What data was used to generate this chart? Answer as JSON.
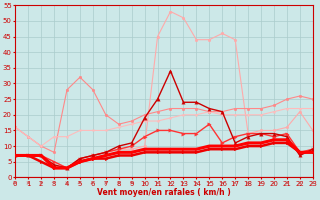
{
  "xlabel": "Vent moyen/en rafales ( km/h )",
  "background_color": "#cce8e8",
  "grid_color": "#aacccc",
  "xlim": [
    0,
    23
  ],
  "ylim": [
    0,
    55
  ],
  "yticks": [
    0,
    5,
    10,
    15,
    20,
    25,
    30,
    35,
    40,
    45,
    50,
    55
  ],
  "xticks": [
    0,
    1,
    2,
    3,
    4,
    5,
    6,
    7,
    8,
    9,
    10,
    11,
    12,
    13,
    14,
    15,
    16,
    17,
    18,
    19,
    20,
    21,
    22,
    23
  ],
  "series": [
    {
      "x": [
        0,
        1,
        2,
        3,
        4,
        5,
        6,
        7,
        8,
        9,
        10,
        11,
        12,
        13,
        14,
        15,
        16,
        17,
        18,
        19,
        20,
        21,
        22,
        23
      ],
      "y": [
        7,
        7,
        7,
        5,
        3,
        6,
        7,
        8,
        9,
        9,
        10,
        45,
        53,
        51,
        44,
        44,
        46,
        44,
        14,
        15,
        15,
        16,
        21,
        15
      ],
      "color": "#ffaaaa",
      "lw": 0.8,
      "marker": "o",
      "ms": 2.0,
      "zorder": 2
    },
    {
      "x": [
        0,
        1,
        2,
        3,
        4,
        5,
        6,
        7,
        8,
        9,
        10,
        11,
        12,
        13,
        14,
        15,
        16,
        17,
        18,
        19,
        20,
        21,
        22,
        23
      ],
      "y": [
        16,
        13,
        10,
        8,
        28,
        32,
        28,
        20,
        17,
        18,
        20,
        21,
        22,
        22,
        22,
        21,
        21,
        22,
        22,
        22,
        23,
        25,
        26,
        25
      ],
      "color": "#ff8888",
      "lw": 0.8,
      "marker": "o",
      "ms": 2.0,
      "zorder": 2
    },
    {
      "x": [
        0,
        1,
        2,
        3,
        4,
        5,
        6,
        7,
        8,
        9,
        10,
        11,
        12,
        13,
        14,
        15,
        16,
        17,
        18,
        19,
        20,
        21,
        22,
        23
      ],
      "y": [
        16,
        13,
        10,
        13,
        13,
        15,
        15,
        15,
        16,
        17,
        18,
        18,
        19,
        20,
        20,
        21,
        20,
        20,
        20,
        20,
        21,
        22,
        22,
        22
      ],
      "color": "#ffbbbb",
      "lw": 0.8,
      "marker": "o",
      "ms": 1.5,
      "zorder": 2
    },
    {
      "x": [
        0,
        1,
        2,
        3,
        4,
        5,
        6,
        7,
        8,
        9,
        10,
        11,
        12,
        13,
        14,
        15,
        16,
        17,
        18,
        19,
        20,
        21,
        22,
        23
      ],
      "y": [
        7,
        7,
        7,
        4,
        3,
        6,
        7,
        8,
        10,
        11,
        19,
        25,
        34,
        24,
        24,
        22,
        21,
        11,
        13,
        14,
        14,
        13,
        7,
        9
      ],
      "color": "#cc0000",
      "lw": 1.0,
      "marker": "^",
      "ms": 2.5,
      "zorder": 4
    },
    {
      "x": [
        0,
        1,
        2,
        3,
        4,
        5,
        6,
        7,
        8,
        9,
        10,
        11,
        12,
        13,
        14,
        15,
        16,
        17,
        18,
        19,
        20,
        21,
        22,
        23
      ],
      "y": [
        7,
        7,
        7,
        5,
        3,
        6,
        7,
        8,
        9,
        10,
        13,
        15,
        15,
        14,
        14,
        17,
        11,
        13,
        14,
        14,
        13,
        14,
        8,
        9
      ],
      "color": "#ff3333",
      "lw": 1.0,
      "marker": ">",
      "ms": 2.5,
      "zorder": 3
    },
    {
      "x": [
        0,
        1,
        2,
        3,
        4,
        5,
        6,
        7,
        8,
        9,
        10,
        11,
        12,
        13,
        14,
        15,
        16,
        17,
        18,
        19,
        20,
        21,
        22,
        23
      ],
      "y": [
        7,
        7,
        5,
        3,
        3,
        5,
        6,
        6,
        7,
        7,
        8,
        8,
        8,
        8,
        8,
        9,
        9,
        9,
        10,
        10,
        11,
        11,
        8,
        8
      ],
      "color": "#ee0000",
      "lw": 1.8,
      "marker": ">",
      "ms": 2.0,
      "zorder": 5
    },
    {
      "x": [
        0,
        1,
        2,
        3,
        4,
        5,
        6,
        7,
        8,
        9,
        10,
        11,
        12,
        13,
        14,
        15,
        16,
        17,
        18,
        19,
        20,
        21,
        22,
        23
      ],
      "y": [
        7,
        7,
        7,
        3,
        3,
        5,
        6,
        7,
        8,
        8,
        9,
        9,
        9,
        9,
        9,
        10,
        10,
        10,
        11,
        11,
        12,
        12,
        8,
        8
      ],
      "color": "#ff0000",
      "lw": 2.2,
      "marker": ">",
      "ms": 2.0,
      "zorder": 5
    }
  ]
}
